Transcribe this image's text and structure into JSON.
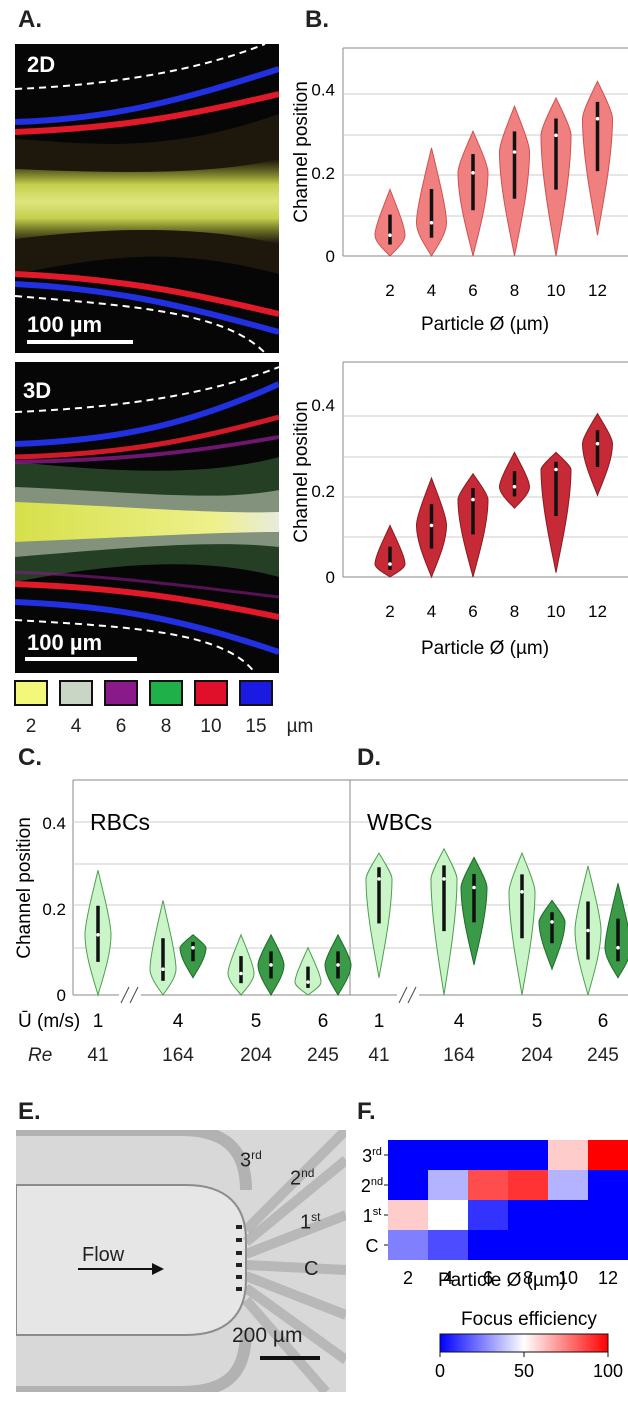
{
  "panel_labels": {
    "a": "A.",
    "b": "B.",
    "c": "C.",
    "d": "D.",
    "e": "E.",
    "f": "F."
  },
  "micrographs": {
    "top": {
      "tag": "2D",
      "scale": "100 µm"
    },
    "bottom": {
      "tag": "3D",
      "scale": "100 µm"
    }
  },
  "legend": {
    "items": [
      {
        "label": "2",
        "color": "#f4f87a"
      },
      {
        "label": "4",
        "color": "#c9d6c6"
      },
      {
        "label": "6",
        "color": "#8a1a8a"
      },
      {
        "label": "8",
        "color": "#1fb04a"
      },
      {
        "label": "10",
        "color": "#e0102a"
      },
      {
        "label": "15",
        "color": "#1a1ae0"
      }
    ],
    "unit": "µm"
  },
  "chart_data": [
    {
      "id": "B-top",
      "type": "violin",
      "xlabel": "Particle Ø (µm)",
      "ylabel": "Channel position",
      "ylim": [
        0,
        0.5
      ],
      "yticks": [
        "0",
        "0.2",
        "0.4"
      ],
      "categories": [
        "2",
        "4",
        "6",
        "8",
        "10",
        "12"
      ],
      "color": "#f08080",
      "values": [
        {
          "min": 0.0,
          "max": 0.16,
          "median": 0.05
        },
        {
          "min": 0.0,
          "max": 0.26,
          "median": 0.08
        },
        {
          "min": 0.0,
          "max": 0.3,
          "median": 0.2
        },
        {
          "min": 0.0,
          "max": 0.36,
          "median": 0.25
        },
        {
          "min": 0.0,
          "max": 0.38,
          "median": 0.29
        },
        {
          "min": 0.05,
          "max": 0.42,
          "median": 0.33
        }
      ]
    },
    {
      "id": "B-bottom",
      "type": "violin",
      "xlabel": "Particle Ø (µm)",
      "ylabel": "Channel position",
      "ylim": [
        0,
        0.5
      ],
      "yticks": [
        "0",
        "0.2",
        "0.4"
      ],
      "categories": [
        "2",
        "4",
        "6",
        "8",
        "10",
        "12"
      ],
      "color": "#c62a36",
      "values": [
        {
          "min": 0.0,
          "max": 0.12,
          "median": 0.03
        },
        {
          "min": 0.0,
          "max": 0.23,
          "median": 0.12
        },
        {
          "min": 0.0,
          "max": 0.24,
          "median": 0.18
        },
        {
          "min": 0.16,
          "max": 0.29,
          "median": 0.21
        },
        {
          "min": 0.01,
          "max": 0.29,
          "median": 0.25
        },
        {
          "min": 0.19,
          "max": 0.38,
          "median": 0.31
        }
      ]
    },
    {
      "id": "C",
      "type": "violin",
      "title": "RBCs",
      "ylabel": "Channel position",
      "ylim": [
        0,
        0.5
      ],
      "yticks": [
        "0",
        "0.2",
        "0.4"
      ],
      "row1_label": "Ū (m/s)",
      "row2_label": "Re",
      "groups": [
        {
          "u": "1",
          "re": "41",
          "light": {
            "min": 0.0,
            "max": 0.29,
            "median": 0.14
          }
        },
        {
          "u": "4",
          "re": "164",
          "light": {
            "min": 0.0,
            "max": 0.22,
            "median": 0.06
          },
          "dark": {
            "min": 0.04,
            "max": 0.14,
            "median": 0.11
          }
        },
        {
          "u": "5",
          "re": "204",
          "light": {
            "min": 0.0,
            "max": 0.14,
            "median": 0.05
          },
          "dark": {
            "min": 0.0,
            "max": 0.14,
            "median": 0.07
          }
        },
        {
          "u": "6",
          "re": "245",
          "light": {
            "min": 0.0,
            "max": 0.11,
            "median": 0.03
          },
          "dark": {
            "min": 0.0,
            "max": 0.14,
            "median": 0.07
          }
        }
      ]
    },
    {
      "id": "D",
      "type": "violin",
      "title": "WBCs",
      "ylim": [
        0,
        0.5
      ],
      "groups": [
        {
          "u": "1",
          "re": "41",
          "light": {
            "min": 0.04,
            "max": 0.33,
            "median": 0.27
          }
        },
        {
          "u": "4",
          "re": "164",
          "light": {
            "min": 0.0,
            "max": 0.34,
            "median": 0.27
          },
          "dark": {
            "min": 0.07,
            "max": 0.32,
            "median": 0.25
          }
        },
        {
          "u": "5",
          "re": "204",
          "light": {
            "min": 0.0,
            "max": 0.33,
            "median": 0.24
          },
          "dark": {
            "min": 0.06,
            "max": 0.22,
            "median": 0.17
          }
        },
        {
          "u": "6",
          "re": "245",
          "light": {
            "min": 0.0,
            "max": 0.3,
            "median": 0.15
          },
          "dark": {
            "min": 0.04,
            "max": 0.26,
            "median": 0.11
          }
        }
      ]
    },
    {
      "id": "F",
      "type": "heatmap",
      "xlabel": "Particle Ø (µm)",
      "x": [
        "2",
        "4",
        "6",
        "8",
        "10",
        "12"
      ],
      "y": [
        "3rd",
        "2nd",
        "1st",
        "C"
      ],
      "values": [
        [
          0,
          0,
          0,
          0,
          60,
          100
        ],
        [
          0,
          35,
          85,
          90,
          35,
          0
        ],
        [
          60,
          50,
          10,
          0,
          0,
          0
        ],
        [
          25,
          15,
          0,
          0,
          0,
          0
        ]
      ],
      "colorbar": {
        "title": "Focus efficiency",
        "ticks": [
          "0",
          "50",
          "100"
        ],
        "min_color": "#0000ff",
        "mid_color": "#ffffff",
        "max_color": "#ff0000"
      }
    }
  ],
  "panel_e": {
    "outlets": [
      "3",
      "2",
      "1",
      "C"
    ],
    "outlet_sup": [
      "rd",
      "nd",
      "st"
    ],
    "flow": "Flow",
    "scale": "200 µm"
  }
}
